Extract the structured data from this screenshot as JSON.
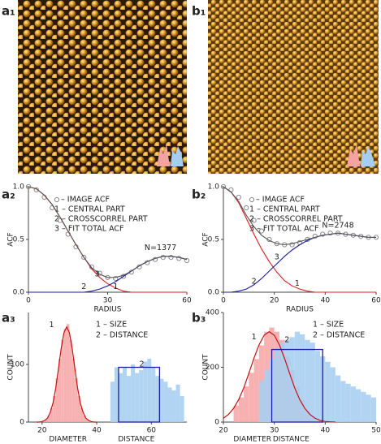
{
  "images": [
    {
      "label": "a₁"
    },
    {
      "label": "b₁"
    }
  ],
  "chart_data": [
    {
      "type": "line",
      "label": "a₂",
      "xlabel": "RADIUS",
      "ylabel": "ACF",
      "xlim": [
        0,
        60
      ],
      "ylim": [
        0,
        1.0
      ],
      "xticks": [
        0,
        30,
        60
      ],
      "yticks": [
        {
          "value": 0,
          "label": "0.0"
        },
        {
          "value": 0.5,
          "label": "0.5"
        },
        {
          "value": 1.0,
          "label": "1.0"
        }
      ],
      "x": [
        0,
        3,
        6,
        9,
        12,
        15,
        18,
        21,
        24,
        27,
        30,
        33,
        36,
        39,
        42,
        45,
        48,
        51,
        54,
        57,
        60
      ],
      "series": [
        {
          "name": "– IMAGE ACF",
          "color": "#8a8a8a",
          "marker": "circle",
          "values": [
            1.0,
            0.97,
            0.9,
            0.8,
            0.68,
            0.55,
            0.43,
            0.33,
            0.24,
            0.18,
            0.14,
            0.13,
            0.15,
            0.19,
            0.24,
            0.28,
            0.31,
            0.33,
            0.33,
            0.32,
            0.3
          ]
        },
        {
          "name": "1 – CENTRAL PART",
          "color": "#d42020",
          "values": [
            1.0,
            0.98,
            0.92,
            0.83,
            0.71,
            0.58,
            0.45,
            0.33,
            0.22,
            0.14,
            0.08,
            0.04,
            0.01,
            0,
            0,
            0,
            0,
            0,
            0,
            0,
            0
          ]
        },
        {
          "name": "2 – CROSSCORREL PART",
          "color": "#1c1ca0",
          "values": [
            0,
            0,
            0,
            0,
            0,
            0,
            0,
            0,
            0.01,
            0.03,
            0.06,
            0.1,
            0.15,
            0.2,
            0.25,
            0.29,
            0.32,
            0.34,
            0.34,
            0.33,
            0.31
          ]
        },
        {
          "name": "3 – FIT TOTAL ACF",
          "color": "#555555",
          "values": [
            1.0,
            0.98,
            0.92,
            0.83,
            0.71,
            0.58,
            0.45,
            0.33,
            0.23,
            0.17,
            0.14,
            0.14,
            0.16,
            0.2,
            0.25,
            0.29,
            0.32,
            0.34,
            0.34,
            0.33,
            0.31
          ]
        }
      ],
      "annotations": [
        "N=1377",
        "1",
        "2",
        "3"
      ]
    },
    {
      "type": "line",
      "label": "b₂",
      "xlabel": "RADIUS",
      "ylabel": "ACF",
      "xlim": [
        0,
        60
      ],
      "ylim": [
        0,
        1.0
      ],
      "xticks": [
        0,
        20,
        40,
        60
      ],
      "yticks": [
        {
          "value": 0,
          "label": "0.0"
        },
        {
          "value": 0.5,
          "label": "0.5"
        },
        {
          "value": 1.0,
          "label": "1.0"
        }
      ],
      "x": [
        0,
        3,
        6,
        9,
        12,
        15,
        18,
        21,
        24,
        27,
        30,
        33,
        36,
        39,
        42,
        45,
        48,
        51,
        54,
        57,
        60
      ],
      "series": [
        {
          "name": "– IMAGE ACF",
          "color": "#8a8a8a",
          "marker": "circle",
          "values": [
            1.0,
            0.97,
            0.9,
            0.8,
            0.68,
            0.58,
            0.5,
            0.46,
            0.45,
            0.45,
            0.47,
            0.5,
            0.53,
            0.55,
            0.56,
            0.56,
            0.55,
            0.54,
            0.53,
            0.52,
            0.52
          ]
        },
        {
          "name": "1 – CENTRAL PART",
          "color": "#d42020",
          "values": [
            1.0,
            0.95,
            0.85,
            0.7,
            0.55,
            0.41,
            0.29,
            0.19,
            0.11,
            0.06,
            0.03,
            0.01,
            0,
            0,
            0,
            0,
            0,
            0,
            0,
            0,
            0
          ]
        },
        {
          "name": "2 – CROSSCORREL PART",
          "color": "#1c1ca0",
          "values": [
            0,
            0,
            0.01,
            0.03,
            0.07,
            0.13,
            0.2,
            0.27,
            0.34,
            0.4,
            0.45,
            0.49,
            0.52,
            0.54,
            0.55,
            0.56,
            0.55,
            0.54,
            0.53,
            0.52,
            0.52
          ]
        },
        {
          "name": "3 – FIT TOTAL ACF",
          "color": "#555555",
          "values": [
            1.0,
            0.95,
            0.86,
            0.73,
            0.62,
            0.54,
            0.49,
            0.46,
            0.45,
            0.46,
            0.48,
            0.5,
            0.52,
            0.54,
            0.55,
            0.56,
            0.55,
            0.54,
            0.53,
            0.52,
            0.52
          ]
        }
      ],
      "annotations": [
        "N=2748",
        "1",
        "2",
        "3"
      ]
    },
    {
      "type": "histogram",
      "label": "a₃",
      "ylabel": "COUNT",
      "xlim": [
        15,
        73
      ],
      "ylim": [
        0,
        190
      ],
      "xticks": [
        20,
        40,
        60
      ],
      "yticks": [
        0,
        100
      ],
      "series": [
        {
          "name": "1 – SIZE",
          "color": "#f6a9a9",
          "bins": [
            20,
            21,
            22,
            23,
            24,
            25,
            26,
            27,
            28,
            29,
            30,
            31,
            32,
            33,
            34,
            35,
            36,
            37,
            38
          ],
          "values": [
            2,
            5,
            11,
            24,
            45,
            76,
            110,
            143,
            162,
            170,
            143,
            110,
            76,
            45,
            24,
            11,
            5,
            2
          ]
        },
        {
          "name": "2 – DISTANCE",
          "color": "#a9cff2",
          "bins": [
            45,
            46.5,
            48,
            49.5,
            51,
            52.5,
            54,
            55.5,
            57,
            58.5,
            60,
            61.5,
            63,
            64.5,
            66,
            67.5,
            69,
            70.5,
            72
          ],
          "values": [
            70,
            95,
            85,
            95,
            80,
            100,
            85,
            90,
            105,
            110,
            95,
            80,
            75,
            70,
            60,
            55,
            65,
            45
          ]
        }
      ],
      "fit": {
        "color": "#c81010",
        "x": [
          18,
          19,
          20,
          21,
          22,
          23,
          24,
          25,
          26,
          27,
          28,
          29,
          30,
          31,
          32,
          33,
          34,
          35,
          36,
          37,
          38,
          39,
          40
        ],
        "values": [
          0,
          0,
          1,
          3,
          7,
          17,
          33,
          59,
          93,
          128,
          155,
          165,
          155,
          128,
          93,
          59,
          33,
          17,
          7,
          3,
          1,
          0,
          0
        ]
      },
      "box": {
        "color": "#1c1ca0",
        "x": [
          48,
          63
        ],
        "value": 95
      },
      "xlabels": [
        "DIAMETER",
        "DISTANCE"
      ],
      "annotations": [
        "1",
        "2"
      ]
    },
    {
      "type": "histogram",
      "label": "b₃",
      "ylabel": "COUNT",
      "xlim": [
        20,
        50
      ],
      "ylim": [
        0,
        400
      ],
      "xticks": [
        20,
        30,
        40,
        50
      ],
      "yticks": [
        0,
        200,
        400
      ],
      "series": [
        {
          "name": "1 – SIZE",
          "color": "#f6a9a9",
          "bins": [
            22,
            23,
            24,
            25,
            26,
            27,
            28,
            29,
            30,
            31,
            32,
            33,
            34,
            35,
            36,
            37,
            38
          ],
          "values": [
            60,
            90,
            130,
            180,
            230,
            280,
            330,
            345,
            330,
            300,
            240,
            190,
            130,
            80,
            40,
            20
          ]
        },
        {
          "name": "2 – DISTANCE",
          "color": "#a9cff2",
          "bins": [
            27,
            28,
            29,
            30,
            31,
            32,
            33,
            34,
            35,
            36,
            37,
            38,
            39,
            40,
            41,
            42,
            43,
            44,
            45,
            46,
            47,
            48,
            49,
            50
          ],
          "values": [
            150,
            190,
            230,
            270,
            290,
            300,
            310,
            330,
            320,
            300,
            290,
            260,
            240,
            220,
            200,
            170,
            150,
            140,
            130,
            120,
            110,
            100,
            90
          ]
        }
      ],
      "fit": {
        "color": "#c81010",
        "x": [
          20,
          21,
          22,
          23,
          24,
          25,
          26,
          27,
          28,
          29,
          30,
          31,
          32,
          33,
          34,
          35,
          36,
          37,
          38,
          39,
          40,
          41,
          42
        ],
        "values": [
          14,
          28,
          50,
          82,
          125,
          178,
          233,
          282,
          317,
          330,
          317,
          282,
          233,
          178,
          125,
          82,
          50,
          28,
          14,
          6,
          2,
          1,
          0
        ]
      },
      "box": {
        "color": "#1c1ca0",
        "x": [
          29.5,
          39.5
        ],
        "value": 265
      },
      "xlabels": [
        "DIAMETER",
        "DISTANCE"
      ],
      "annotations": [
        "1",
        "2"
      ]
    }
  ]
}
